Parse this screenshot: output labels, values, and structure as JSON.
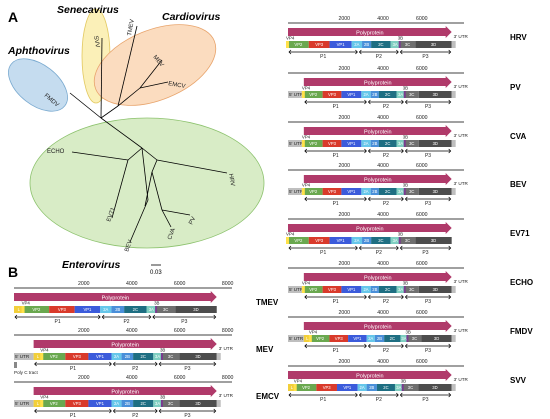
{
  "figure": {
    "panel_a_label": "A",
    "panel_b_label": "B",
    "genera": [
      {
        "key": "aphthovirus",
        "label": "Aphthovirus",
        "color": "#c5dcef",
        "stroke": "#7aaad0"
      },
      {
        "key": "senecavirus",
        "label": "Senecavirus",
        "color": "#fbf0b8",
        "stroke": "#e2c85e"
      },
      {
        "key": "cardiovirus",
        "label": "Cardiovirus",
        "color": "#fbdcbf",
        "stroke": "#e8a46c"
      },
      {
        "key": "enterovirus",
        "label": "Enterovirus",
        "color": "#d8ecc6",
        "stroke": "#8cc26d"
      }
    ],
    "tree_leaves": [
      "FMDV",
      "SVV",
      "TMEV",
      "MEV",
      "EMCV",
      "ECHO",
      "EV71",
      "BEV",
      "CVA",
      "PV",
      "HRV"
    ],
    "scale_bar_label": "0.03"
  },
  "genome_maps": [
    {
      "name": "HRV",
      "has_utr5": false,
      "has_utr3": true
    },
    {
      "name": "PV",
      "has_utr5": true,
      "has_utr3": true
    },
    {
      "name": "CVA",
      "has_utr5": true,
      "has_utr3": true
    },
    {
      "name": "BEV",
      "has_utr5": true,
      "has_utr3": true
    },
    {
      "name": "EV71",
      "has_utr5": false,
      "has_utr3": false
    },
    {
      "name": "ECHO",
      "has_utr5": true,
      "has_utr3": true
    },
    {
      "name": "FMDV",
      "has_utr5": true,
      "has_utr3": true
    },
    {
      "name": "SVV",
      "has_utr5": false,
      "has_utr3": true
    },
    {
      "name": "TMEV",
      "has_utr5": false,
      "has_utr3": false
    },
    {
      "name": "MEV",
      "has_utr5": true,
      "has_utr3": true
    },
    {
      "name": "EMCV",
      "has_utr5": true,
      "has_utr3": true
    }
  ],
  "labels": {
    "polyprotein": "Polyprotein",
    "utr5": "5' UTR",
    "utr3": "3' UTR",
    "poly_c": "Poly C tract",
    "ticks": [
      "2000",
      "4000",
      "6000",
      "8000"
    ],
    "vp4": "VP4",
    "segments_entero": [
      "VP2",
      "VP3",
      "VP1",
      "2A",
      "2B",
      "2C",
      "3A",
      "3C",
      "3D"
    ],
    "segments_cardio": [
      "L",
      "VP2",
      "VP3",
      "VP1",
      "2A",
      "2B",
      "2C",
      "3A",
      "3C",
      "3D"
    ],
    "tag_3b": "3B",
    "regions": [
      "P1",
      "P2",
      "P3"
    ]
  },
  "colors": {
    "polyprotein": "#b03a6a",
    "utr": "#bfbfbf",
    "L": "#f2cf3a",
    "VP4": "#ffe14a",
    "VP2": "#6aa84f",
    "VP3": "#d93a2b",
    "VP1": "#3b5bdb",
    "2A": "#66c7ea",
    "2B": "#4a8fd9",
    "2C": "#1e6e82",
    "3A": "#7fcfc1",
    "3B": "#7a3b8f",
    "3C": "#6f6f6f",
    "3D": "#4d4d4d"
  }
}
